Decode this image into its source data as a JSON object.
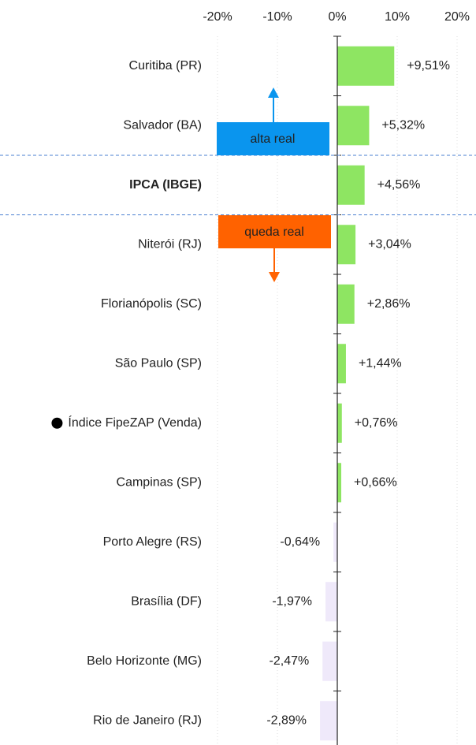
{
  "chart_data": {
    "type": "bar",
    "orientation": "horizontal",
    "categories": [
      "Curitiba (PR)",
      "Salvador (BA)",
      "IPCA (IBGE)",
      "Niterói (RJ)",
      "Florianópolis (SC)",
      "São Paulo (SP)",
      "Índice FipeZAP (Venda)",
      "Campinas (SP)",
      "Porto Alegre (RS)",
      "Brasília (DF)",
      "Belo Horizonte (MG)",
      "Rio de Janeiro (RJ)"
    ],
    "values": [
      9.51,
      5.32,
      4.56,
      3.04,
      2.86,
      1.44,
      0.76,
      0.66,
      -0.64,
      -1.97,
      -2.47,
      -2.89
    ],
    "value_labels": [
      "+9,51%",
      "+5,32%",
      "+4,56%",
      "+3,04%",
      "+2,86%",
      "+1,44%",
      "+0,76%",
      "+0,66%",
      "-0,64%",
      "-1,97%",
      "-2,47%",
      "-2,89%"
    ],
    "positive_color": "#8ee562",
    "negative_color": "#efe9fa",
    "bold_category": "IPCA (IBGE)",
    "marked_category": "Índice FipeZAP (Venda)",
    "xlim": [
      -20,
      20
    ],
    "xticks": [
      {
        "value": -20,
        "label": "-20%"
      },
      {
        "value": -10,
        "label": "-10%"
      },
      {
        "value": 0,
        "label": "0%"
      },
      {
        "value": 10,
        "label": "10%"
      },
      {
        "value": 20,
        "label": "20%"
      }
    ],
    "annotations": [
      {
        "text": "alta real",
        "color": "#0a95ee"
      },
      {
        "text": "queda real",
        "color": "#ff6200"
      }
    ]
  }
}
